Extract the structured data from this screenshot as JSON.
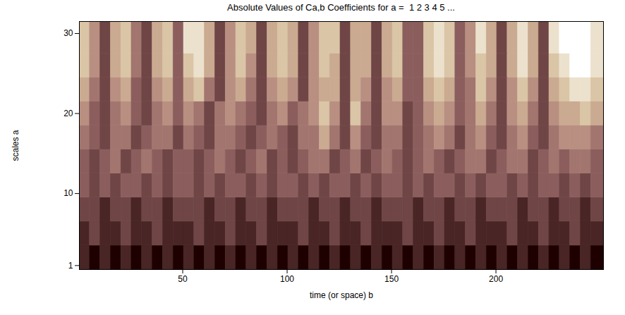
{
  "chart_data": {
    "type": "heatmap",
    "title": "Absolute Values of Ca,b Coefficients for a =  1 2 3 4 5 ...",
    "x_label": "time (or space) b",
    "y_label": "scales a",
    "xlim": [
      0.5,
      251.5
    ],
    "ylim": [
      0.5,
      31.5
    ],
    "xticks": [
      50,
      100,
      150,
      200
    ],
    "yticks": [
      1,
      10,
      20,
      30
    ],
    "b_edges": [
      0.5,
      5.5,
      10.5,
      15.5,
      20.5,
      25.5,
      30.5,
      35.5,
      40.5,
      45.5,
      50.5,
      55.5,
      60.5,
      65.5,
      70.5,
      75.5,
      80.5,
      85.5,
      90.5,
      95.5,
      100.5,
      105.5,
      110.5,
      115.5,
      120.5,
      125.5,
      130.5,
      135.5,
      140.5,
      145.5,
      150.5,
      155.5,
      160.5,
      165.5,
      170.5,
      175.5,
      180.5,
      185.5,
      190.5,
      195.5,
      200.5,
      205.5,
      210.5,
      215.5,
      220.5,
      225.5,
      230.5,
      235.5,
      240.5,
      245.5,
      251.5
    ],
    "a_edges": [
      0.5,
      3.5,
      6.5,
      9.5,
      12.5,
      15.5,
      18.5,
      21.5,
      24.5,
      27.5,
      31.5
    ],
    "cells": [
      [
        1,
        0,
        1,
        0,
        1,
        0,
        1,
        0,
        1,
        0,
        1,
        0,
        1,
        0,
        1,
        0,
        1,
        0,
        1,
        0,
        1,
        0,
        1,
        0,
        1,
        0,
        1,
        0,
        1,
        0,
        1,
        0,
        1,
        0,
        1,
        0,
        1,
        0,
        1,
        0,
        1,
        0,
        1,
        0,
        1,
        0,
        1,
        0,
        1,
        0
      ],
      [
        1,
        2,
        1,
        1,
        2,
        1,
        1,
        2,
        1,
        1,
        1,
        2,
        1,
        1,
        2,
        1,
        1,
        2,
        1,
        1,
        1,
        2,
        1,
        1,
        2,
        1,
        1,
        2,
        1,
        1,
        1,
        2,
        1,
        1,
        2,
        1,
        1,
        2,
        1,
        1,
        1,
        2,
        1,
        1,
        2,
        1,
        1,
        2,
        1,
        1
      ],
      [
        2,
        2,
        1,
        2,
        2,
        1,
        2,
        2,
        1,
        2,
        2,
        2,
        1,
        2,
        2,
        1,
        2,
        2,
        1,
        2,
        2,
        2,
        1,
        2,
        2,
        1,
        2,
        2,
        1,
        2,
        2,
        2,
        1,
        2,
        2,
        1,
        2,
        2,
        1,
        2,
        2,
        2,
        1,
        2,
        2,
        1,
        2,
        2,
        1,
        2
      ],
      [
        3,
        2,
        3,
        2,
        3,
        3,
        2,
        3,
        2,
        3,
        3,
        2,
        3,
        2,
        3,
        3,
        2,
        3,
        2,
        3,
        3,
        2,
        3,
        2,
        3,
        3,
        2,
        3,
        2,
        3,
        3,
        2,
        3,
        2,
        3,
        3,
        2,
        3,
        2,
        3,
        3,
        2,
        3,
        2,
        3,
        3,
        2,
        3,
        2,
        3
      ],
      [
        3,
        2,
        3,
        4,
        2,
        3,
        4,
        3,
        2,
        3,
        3,
        2,
        3,
        4,
        3,
        2,
        3,
        4,
        2,
        3,
        2,
        3,
        4,
        4,
        2,
        3,
        4,
        2,
        3,
        4,
        3,
        2,
        3,
        4,
        3,
        2,
        3,
        4,
        4,
        2,
        3,
        4,
        4,
        2,
        3,
        4,
        3,
        4,
        4,
        3
      ],
      [
        4,
        3,
        2,
        4,
        4,
        2,
        3,
        4,
        4,
        2,
        4,
        3,
        2,
        4,
        4,
        3,
        2,
        3,
        4,
        3,
        2,
        4,
        4,
        6,
        4,
        2,
        5,
        3,
        2,
        4,
        4,
        2,
        3,
        4,
        5,
        4,
        2,
        4,
        5,
        3,
        2,
        4,
        5,
        3,
        2,
        4,
        5,
        5,
        5,
        4
      ],
      [
        5,
        3,
        2,
        4,
        5,
        3,
        2,
        4,
        5,
        3,
        5,
        4,
        2,
        4,
        5,
        4,
        3,
        2,
        4,
        5,
        3,
        4,
        5,
        7,
        5,
        2,
        7,
        4,
        2,
        5,
        5,
        2,
        3,
        5,
        6,
        5,
        3,
        4,
        6,
        4,
        2,
        5,
        6,
        4,
        2,
        5,
        6,
        6,
        7,
        6
      ],
      [
        6,
        4,
        2,
        5,
        6,
        3,
        2,
        5,
        6,
        3,
        6,
        7,
        4,
        2,
        5,
        6,
        4,
        2,
        5,
        6,
        5,
        2,
        5,
        6,
        6,
        2,
        6,
        5,
        2,
        5,
        6,
        3,
        3,
        6,
        7,
        6,
        3,
        4,
        7,
        5,
        2,
        5,
        7,
        5,
        2,
        6,
        7,
        8,
        8,
        7
      ],
      [
        7,
        5,
        2,
        6,
        7,
        4,
        2,
        6,
        7,
        3,
        7,
        8,
        6,
        2,
        5,
        7,
        5,
        2,
        6,
        7,
        6,
        2,
        5,
        7,
        6,
        2,
        6,
        6,
        2,
        6,
        7,
        3,
        3,
        7,
        8,
        7,
        3,
        5,
        7,
        6,
        2,
        6,
        8,
        6,
        2,
        7,
        8,
        9,
        9,
        8
      ],
      [
        7,
        5,
        2,
        6,
        7,
        4,
        2,
        6,
        7,
        3,
        8,
        8,
        6,
        2,
        5,
        7,
        6,
        2,
        6,
        7,
        6,
        2,
        5,
        7,
        7,
        2,
        6,
        6,
        2,
        6,
        7,
        3,
        3,
        7,
        8,
        7,
        3,
        5,
        8,
        6,
        2,
        6,
        8,
        6,
        2,
        8,
        9,
        9,
        9,
        8
      ]
    ]
  }
}
